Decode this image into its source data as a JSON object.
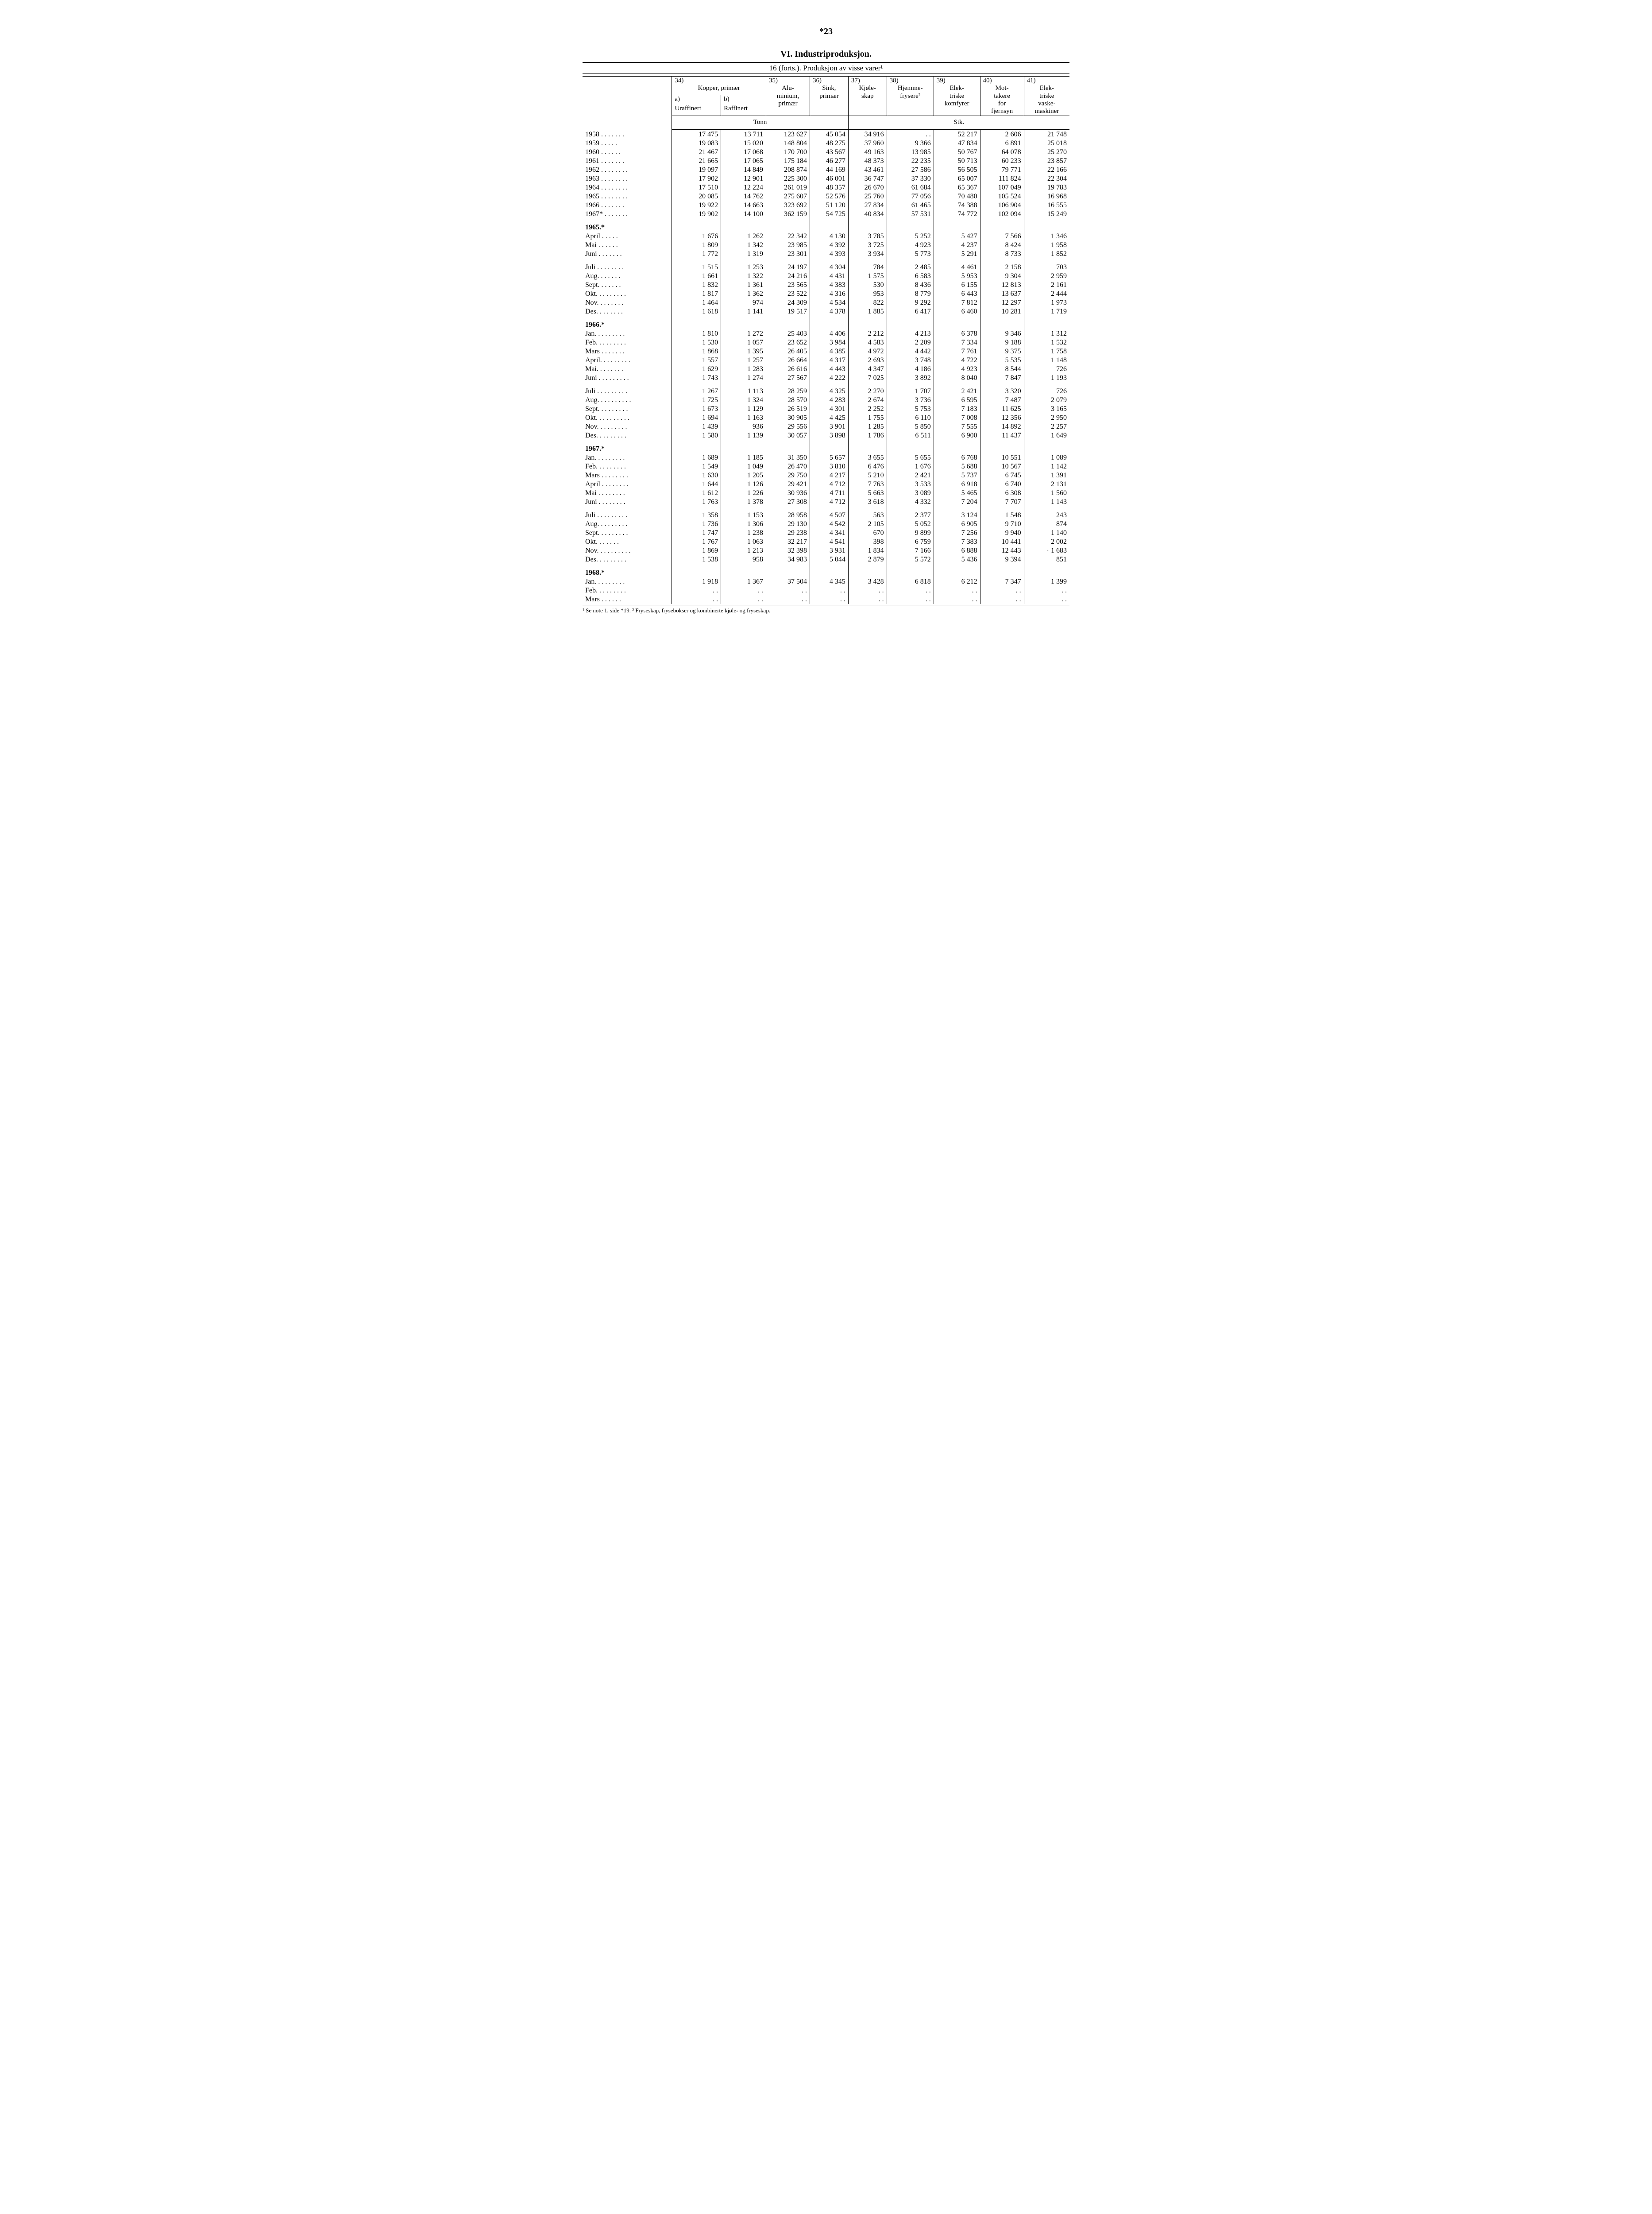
{
  "page_number": "*23",
  "title": "VI. Industriproduksjon.",
  "subtitle": "16 (forts.). Produksjon av visse varer¹",
  "header": {
    "group34": "34)",
    "group34_label": "Kopper, primær",
    "col_a": "a)",
    "col_a_label": "Uraffinert",
    "col_b": "b)",
    "col_b_label": "Raffinert",
    "col35": "35)",
    "col35_label": "Alu-\nminium,\nprimær",
    "col36": "36)",
    "col36_label": "Sink,\nprimær",
    "col37": "37)",
    "col37_label": "Kjøle-\nskap",
    "col38": "38)",
    "col38_label": "Hjemme-\nfrysere²",
    "col39": "39)",
    "col39_label": "Elek-\ntriske\nkomfyrer",
    "col40": "40)",
    "col40_label": "Mot-\ntakere\nfor\nfjernsyn",
    "col41": "41)",
    "col41_label": "Elek-\ntriske\nvaske-\nmaskiner",
    "unit_tonn": "Tonn",
    "unit_stk": "Stk."
  },
  "rows": [
    {
      "label": "1958 . . . . . . .",
      "v": [
        "17 475",
        "13 711",
        "123 627",
        "45 054",
        "34 916",
        ". .",
        "52 217",
        "2 606",
        "21 748"
      ]
    },
    {
      "label": "1959 . . . . .",
      "v": [
        "19 083",
        "15 020",
        "148 804",
        "48 275",
        "37 960",
        "9 366",
        "47 834",
        "6 891",
        "25 018"
      ]
    },
    {
      "label": "1960 . . . .  . .",
      "v": [
        "21 467",
        "17 068",
        "170 700",
        "43 567",
        "49 163",
        "13 985",
        "50 767",
        "64 078",
        "25 270"
      ]
    },
    {
      "label": "1961 . . . . . . .",
      "v": [
        "21 665",
        "17 065",
        "175 184",
        "46 277",
        "48 373",
        "22 235",
        "50 713",
        "60 233",
        "23 857"
      ]
    },
    {
      "label": "1962 . . . . . . . .",
      "v": [
        "19 097",
        "14 849",
        "208 874",
        "44 169",
        "43 461",
        "27 586",
        "56 505",
        "79 771",
        "22 166"
      ]
    },
    {
      "label": "1963 . . . . . . . .",
      "v": [
        "17 902",
        "12 901",
        "225 300",
        "46 001",
        "36 747",
        "37 330",
        "65 007",
        "111 824",
        "22 304"
      ]
    },
    {
      "label": "1964 . . . . . . . .",
      "v": [
        "17 510",
        "12 224",
        "261 019",
        "48 357",
        "26 670",
        "61 684",
        "65 367",
        "107 049",
        "19 783"
      ]
    },
    {
      "label": "1965 . . . . . . . .",
      "v": [
        "20 085",
        "14 762",
        "275 607",
        "52 576",
        "25 760",
        "77 056",
        "70 480",
        "105 524",
        "16 968"
      ]
    },
    {
      "label": "1966 . . . .  . . .",
      "v": [
        "19 922",
        "14 663",
        "323 692",
        "51 120",
        "27 834",
        "61 465",
        "74 388",
        "106 904",
        "16 555"
      ]
    },
    {
      "label": "1967* . . . . . . .",
      "v": [
        "19 902",
        "14 100",
        "362 159",
        "54 725",
        "40 834",
        "57 531",
        "74 772",
        "102 094",
        "15 249"
      ]
    },
    {
      "spacer": true
    },
    {
      "section": true,
      "label": "1965.*",
      "v": [
        "",
        "",
        "",
        "",
        "",
        "",
        "",
        "",
        ""
      ]
    },
    {
      "label": "April   . . . . .",
      "v": [
        "1 676",
        "1 262",
        "22 342",
        "4 130",
        "3 785",
        "5 252",
        "5 427",
        "7 566",
        "1 346"
      ]
    },
    {
      "label": "Mai  . . . . . .",
      "v": [
        "1 809",
        "1 342",
        "23 985",
        "4 392",
        "3 725",
        "4 923",
        "4 237",
        "8 424",
        "1 958"
      ]
    },
    {
      "label": "Juni . .  . . . . .",
      "v": [
        "1 772",
        "1 319",
        "23 301",
        "4 393",
        "3 934",
        "5 773",
        "5 291",
        "8 733",
        "1 852"
      ]
    },
    {
      "spacer": true
    },
    {
      "label": "Juli . . . . . . . .",
      "v": [
        "1 515",
        "1 253",
        "24 197",
        "4 304",
        "784",
        "2 485",
        "4 461",
        "2 158",
        "703"
      ]
    },
    {
      "label": "Aug. .  . . . . .",
      "v": [
        "1 661",
        "1 322",
        "24 216",
        "4 431",
        "1 575",
        "6 583",
        "5 953",
        "9 304",
        "2 959"
      ]
    },
    {
      "label": "Sept. . .  . . . .",
      "v": [
        "1 832",
        "1 361",
        "23 565",
        "4 383",
        "530",
        "8 436",
        "6 155",
        "12 813",
        "2 161"
      ]
    },
    {
      "label": "Okt. . . . . . . . .",
      "v": [
        "1 817",
        "1 362",
        "23 522",
        "4 316",
        "953",
        "8 779",
        "6 443",
        "13 637",
        "2 444"
      ]
    },
    {
      "label": "Nov.  . . . . . . .",
      "v": [
        "1 464",
        "974",
        "24 309",
        "4 534",
        "822",
        "9 292",
        "7 812",
        "12 297",
        "1 973"
      ]
    },
    {
      "label": "Des.  . . . . . . .",
      "v": [
        "1 618",
        "1 141",
        "19 517",
        "4 378",
        "1 885",
        "6 417",
        "6 460",
        "10 281",
        "1 719"
      ]
    },
    {
      "spacer": true
    },
    {
      "section": true,
      "label": "1966.*",
      "v": [
        "",
        "",
        "",
        "",
        "",
        "",
        "",
        "",
        ""
      ]
    },
    {
      "label": "Jan. . .  . . . . . .",
      "v": [
        "1 810",
        "1 272",
        "25 403",
        "4 406",
        "2 212",
        "4 213",
        "6 378",
        "9 346",
        "1 312"
      ]
    },
    {
      "label": "Feb. . . . . . . . .",
      "v": [
        "1 530",
        "1 057",
        "23 652",
        "3 984",
        "4 583",
        "2 209",
        "7 334",
        "9 188",
        "1 532"
      ]
    },
    {
      "label": "Mars . . . . . . .",
      "v": [
        "1 868",
        "1 395",
        "26 405",
        "4 385",
        "4 972",
        "4 442",
        "7 761",
        "9 375",
        "1 758"
      ]
    },
    {
      "label": "April. . . . . . . . .",
      "v": [
        "1 557",
        "1 257",
        "26 664",
        "4 317",
        "2 693",
        "3 748",
        "4 722",
        "5 535",
        "1 148"
      ]
    },
    {
      "label": "Mai. . . . .  . . .",
      "v": [
        "1 629",
        "1 283",
        "26 616",
        "4 443",
        "4 347",
        "4 186",
        "4 923",
        "8 544",
        "726"
      ]
    },
    {
      "label": "Juni . . . . . . . . .",
      "v": [
        "1 743",
        "1 274",
        "27 567",
        "4 222",
        "7 025",
        "3 892",
        "8 040",
        "7 847",
        "1 193"
      ]
    },
    {
      "spacer": true
    },
    {
      "label": "Juli . . . . . . . . .",
      "v": [
        "1 267",
        "1 113",
        "28 259",
        "4 325",
        "2 270",
        "1 707",
        "2 421",
        "3 320",
        "726"
      ]
    },
    {
      "label": "Aug. . . . . . . . . .",
      "v": [
        "1 725",
        "1 324",
        "28 570",
        "4 283",
        "2 674",
        "3 736",
        "6 595",
        "7 487",
        "2 079"
      ]
    },
    {
      "label": "Sept. . . . . . . . .",
      "v": [
        "1 673",
        "1 129",
        "26 519",
        "4 301",
        "2 252",
        "5 753",
        "7 183",
        "11 625",
        "3 165"
      ]
    },
    {
      "label": "Okt. . . . . . . . . .",
      "v": [
        "1 694",
        "1 163",
        "30 905",
        "4 425",
        "1 755",
        "6 110",
        "7 008",
        "12 356",
        "2 950"
      ]
    },
    {
      "label": "Nov. . . . . . . . .",
      "v": [
        "1 439",
        "936",
        "29 556",
        "3 901",
        "1 285",
        "5 850",
        "7 555",
        "14 892",
        "2 257"
      ]
    },
    {
      "label": "Des. . . . . . . . .",
      "v": [
        "1 580",
        "1 139",
        "30 057",
        "3 898",
        "1 786",
        "6 511",
        "6 900",
        "11 437",
        "1 649"
      ]
    },
    {
      "spacer": true
    },
    {
      "section": true,
      "label": "1967.*",
      "v": [
        "",
        "",
        "",
        "",
        "",
        "",
        "",
        "",
        ""
      ]
    },
    {
      "label": "Jan. . . . . . . . .",
      "v": [
        "1 689",
        "1 185",
        "31 350",
        "5 657",
        "3 655",
        "5 655",
        "6 768",
        "10 551",
        "1 089"
      ]
    },
    {
      "label": "Feb. . . . . . . . .",
      "v": [
        "1 549",
        "1 049",
        "26 470",
        "3 810",
        "6 476",
        "1 676",
        "5 688",
        "10 567",
        "1 142"
      ]
    },
    {
      "label": "Mars . . . . . . . .",
      "v": [
        "1 630",
        "1 205",
        "29 750",
        "4 217",
        "5 210",
        "2 421",
        "5 737",
        "6 745",
        "1 391"
      ]
    },
    {
      "label": "April . . . . . . . .",
      "v": [
        "1 644",
        "1 126",
        "29 421",
        "4 712",
        "7 763",
        "3 533",
        "6 918",
        "6 740",
        "2 131"
      ]
    },
    {
      "label": "Mai   . . . . . . . .",
      "v": [
        "1 612",
        "1 226",
        "30 936",
        "4 711",
        "5 663",
        "3 089",
        "5 465",
        "6 308",
        "1 560"
      ]
    },
    {
      "label": "Juni   . . . . . . . .",
      "v": [
        "1 763",
        "1 378",
        "27 308",
        "4 712",
        "3 618",
        "4 332",
        "7 204",
        "7 707",
        "1 143"
      ]
    },
    {
      "spacer": true
    },
    {
      "label": "Juli . . . . . . . . .",
      "v": [
        "1 358",
        "1 153",
        "28 958",
        "4 507",
        "563",
        "2 377",
        "3 124",
        "1 548",
        "243"
      ]
    },
    {
      "label": "Aug.  . . . . . . . .",
      "v": [
        "1 736",
        "1 306",
        "29 130",
        "4 542",
        "2 105",
        "5 052",
        "6 905",
        "9 710",
        "874"
      ]
    },
    {
      "label": "Sept. . . . . . . . .",
      "v": [
        "1 747",
        "1 238",
        "29 238",
        "4 341",
        "670",
        "9 899",
        "7 256",
        "9 940",
        "1 140"
      ]
    },
    {
      "label": "Okt. . . . .  . .",
      "v": [
        "1 767",
        "1 063",
        "32 217",
        "4 541",
        "398",
        "6 759",
        "7 383",
        "10 441",
        "2 002"
      ]
    },
    {
      "label": "Nov. . . . . . . . . .",
      "v": [
        "1 869",
        "1 213",
        "32 398",
        "3 931",
        "1 834",
        "7 166",
        "6 888",
        "12 443",
        "·  1 683"
      ]
    },
    {
      "label": "Des. . . . . . . . .",
      "v": [
        "1 538",
        "958",
        "34 983",
        "5 044",
        "2 879",
        "5 572",
        "5 436",
        "9 394",
        "851"
      ]
    },
    {
      "spacer": true
    },
    {
      "section": true,
      "label": "1968.*",
      "v": [
        "",
        "",
        "",
        "",
        "",
        "",
        "",
        "",
        ""
      ]
    },
    {
      "label": "Jan.  . . . . . . . .",
      "v": [
        "1 918",
        "1 367",
        "37 504",
        "4 345",
        "3 428",
        "6 818",
        "6 212",
        "7 347",
        "1 399"
      ]
    },
    {
      "label": "Feb.   . . . . . . . .",
      "v": [
        ". .",
        ". .",
        ". .",
        ". .",
        ". .",
        ". .",
        ". .",
        ". .",
        ". ."
      ]
    },
    {
      "label": "Mars  . . . . . .",
      "v": [
        ". .",
        ". .",
        ". .",
        ". .",
        ". .",
        ". .",
        ". .",
        ". .",
        ". ."
      ]
    }
  ],
  "footnote": "¹ Se note 1, side *19.  ² Fryseskap, frysebokser og kombinerte kjøle- og fryseskap."
}
